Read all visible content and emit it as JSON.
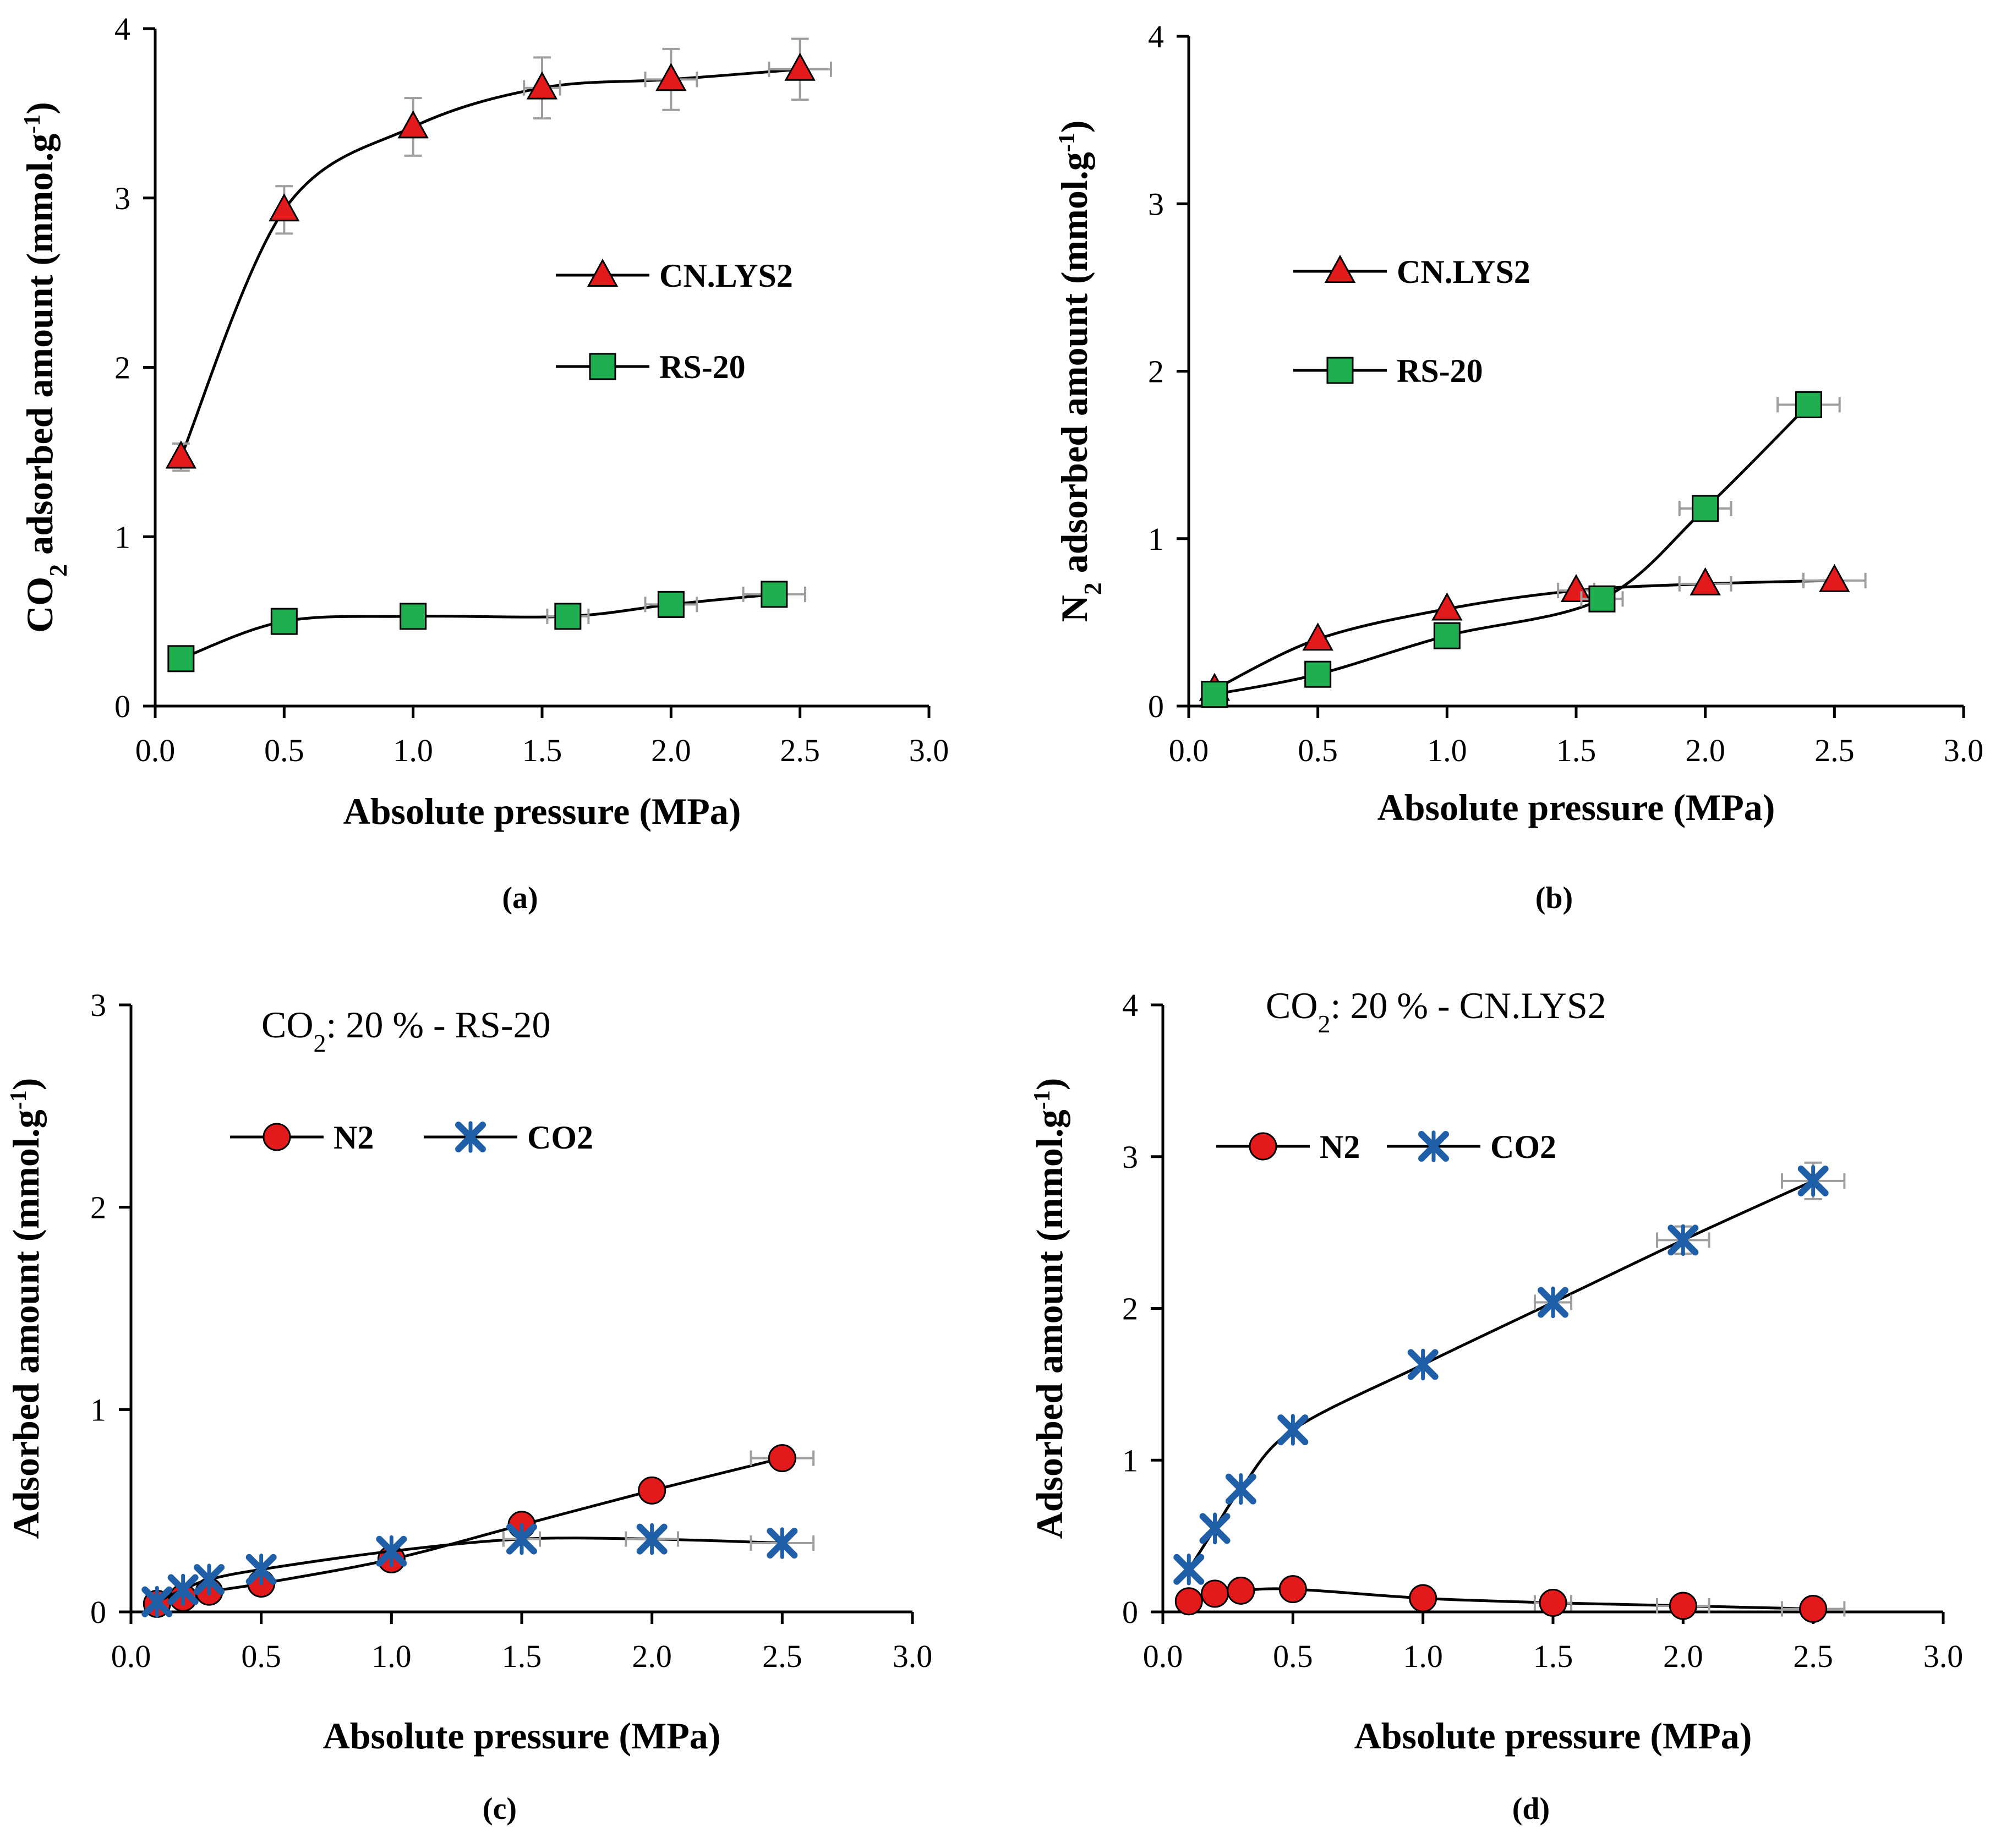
{
  "chart_data": [
    {
      "type": "scatter",
      "panel_label": "(a)",
      "xlabel": "Absolute pressure (MPa)",
      "ylabel": {
        "main": "CO",
        "sub": "2",
        "rest": " adsorbed amount (mmol.g",
        "sup": "-1",
        "end": ")"
      },
      "xlim": [
        0,
        3
      ],
      "ylim": [
        0,
        4
      ],
      "xticks": [
        "0.0",
        "0.5",
        "1.0",
        "1.5",
        "2.0",
        "2.5",
        "3.0"
      ],
      "yticks": [
        "0",
        "1",
        "2",
        "3",
        "4"
      ],
      "annotation": null,
      "legend": [
        "CN.LYS2",
        "RS-20"
      ],
      "series": [
        {
          "name": "CN.LYS2",
          "marker": "triangle",
          "color": "#e31a1c",
          "x": [
            0.1,
            0.5,
            1.0,
            1.5,
            2.0,
            2.5
          ],
          "y": [
            1.47,
            2.93,
            3.42,
            3.65,
            3.7,
            3.76
          ],
          "xerr": [
            0,
            0,
            0,
            0.07,
            0.1,
            0.12
          ],
          "yerr": [
            0.08,
            0.14,
            0.17,
            0.18,
            0.18,
            0.18
          ]
        },
        {
          "name": "RS-20",
          "marker": "square",
          "color": "#1fae50",
          "x": [
            0.1,
            0.5,
            1.0,
            1.6,
            2.0,
            2.4
          ],
          "y": [
            0.28,
            0.5,
            0.53,
            0.53,
            0.6,
            0.66
          ],
          "xerr": [
            0,
            0,
            0,
            0.08,
            0.1,
            0.12
          ],
          "yerr": [
            0,
            0,
            0,
            0,
            0,
            0
          ]
        }
      ]
    },
    {
      "type": "scatter",
      "panel_label": "(b)",
      "xlabel": "Absolute pressure (MPa)",
      "ylabel": {
        "main": "N",
        "sub": "2",
        "rest": " adsorbed amount (mmol.g",
        "sup": "-1",
        "end": ")"
      },
      "xlim": [
        0,
        3
      ],
      "ylim": [
        0,
        4
      ],
      "xticks": [
        "0.0",
        "0.5",
        "1.0",
        "1.5",
        "2.0",
        "2.5",
        "3.0"
      ],
      "yticks": [
        "0",
        "1",
        "2",
        "3",
        "4"
      ],
      "annotation": null,
      "legend": [
        "CN.LYS2",
        "RS-20"
      ],
      "series": [
        {
          "name": "CN.LYS2",
          "marker": "triangle",
          "color": "#e31a1c",
          "x": [
            0.1,
            0.5,
            1.0,
            1.5,
            2.0,
            2.5
          ],
          "y": [
            0.1,
            0.4,
            0.58,
            0.69,
            0.73,
            0.75
          ],
          "xerr": [
            0,
            0,
            0,
            0.07,
            0.1,
            0.12
          ],
          "yerr": [
            0,
            0,
            0,
            0,
            0,
            0
          ]
        },
        {
          "name": "RS-20",
          "marker": "square",
          "color": "#1fae50",
          "x": [
            0.1,
            0.5,
            1.0,
            1.6,
            2.0,
            2.4
          ],
          "y": [
            0.07,
            0.19,
            0.42,
            0.64,
            1.18,
            1.8
          ],
          "xerr": [
            0,
            0,
            0,
            0.08,
            0.1,
            0.12
          ],
          "yerr": [
            0,
            0,
            0,
            0,
            0,
            0
          ]
        }
      ]
    },
    {
      "type": "scatter",
      "panel_label": "(c)",
      "xlabel": "Absolute pressure (MPa)",
      "ylabel": {
        "main": "Adsorbed amount (mmol.g",
        "sub": "",
        "rest": "",
        "sup": "-1",
        "end": ")"
      },
      "xlim": [
        0,
        3
      ],
      "ylim": [
        0,
        3
      ],
      "xticks": [
        "0.0",
        "0.5",
        "1.0",
        "1.5",
        "2.0",
        "2.5",
        "3.0"
      ],
      "yticks": [
        "0",
        "1",
        "2",
        "3"
      ],
      "annotation": {
        "pre": "CO",
        "sub": "2",
        "post": ": 20 % - RS-20"
      },
      "legend": [
        "N2",
        "CO2"
      ],
      "series": [
        {
          "name": "N2",
          "marker": "circle",
          "color": "#e31a1c",
          "x": [
            0.1,
            0.2,
            0.3,
            0.5,
            1.0,
            1.5,
            2.0,
            2.5
          ],
          "y": [
            0.04,
            0.07,
            0.1,
            0.14,
            0.26,
            0.43,
            0.6,
            0.76
          ],
          "xerr": [
            0,
            0,
            0,
            0,
            0,
            0,
            0,
            0.12
          ],
          "yerr": [
            0,
            0,
            0,
            0,
            0,
            0,
            0,
            0
          ]
        },
        {
          "name": "CO2",
          "marker": "star",
          "color": "#1f5fa8",
          "x": [
            0.1,
            0.2,
            0.3,
            0.5,
            1.0,
            1.5,
            2.0,
            2.5
          ],
          "y": [
            0.05,
            0.11,
            0.16,
            0.21,
            0.3,
            0.36,
            0.36,
            0.34
          ],
          "xerr": [
            0,
            0,
            0,
            0,
            0,
            0.07,
            0.1,
            0.12
          ],
          "yerr": [
            0,
            0,
            0,
            0,
            0,
            0,
            0,
            0
          ]
        }
      ]
    },
    {
      "type": "scatter",
      "panel_label": "(d)",
      "xlabel": "Absolute pressure (MPa)",
      "ylabel": {
        "main": "Adsorbed amount (mmol.g",
        "sub": "",
        "rest": "",
        "sup": "-1",
        "end": ")"
      },
      "xlim": [
        0,
        3
      ],
      "ylim": [
        0,
        4
      ],
      "xticks": [
        "0.0",
        "0.5",
        "1.0",
        "1.5",
        "2.0",
        "2.5",
        "3.0"
      ],
      "yticks": [
        "0",
        "1",
        "2",
        "3",
        "4"
      ],
      "annotation": {
        "pre": "CO",
        "sub": "2",
        "post": ": 20 % - CN.LYS2"
      },
      "legend": [
        "N2",
        "CO2"
      ],
      "series": [
        {
          "name": "N2",
          "marker": "circle",
          "color": "#e31a1c",
          "x": [
            0.1,
            0.2,
            0.3,
            0.5,
            1.0,
            1.5,
            2.0,
            2.5
          ],
          "y": [
            0.07,
            0.12,
            0.14,
            0.15,
            0.09,
            0.06,
            0.04,
            0.02
          ],
          "xerr": [
            0,
            0,
            0,
            0,
            0,
            0.07,
            0.1,
            0.12
          ],
          "yerr": [
            0,
            0,
            0,
            0,
            0,
            0,
            0,
            0
          ]
        },
        {
          "name": "CO2",
          "marker": "star",
          "color": "#1f5fa8",
          "x": [
            0.1,
            0.2,
            0.3,
            0.5,
            1.0,
            1.5,
            2.0,
            2.5
          ],
          "y": [
            0.28,
            0.55,
            0.81,
            1.2,
            1.63,
            2.04,
            2.45,
            2.84
          ],
          "xerr": [
            0,
            0,
            0,
            0,
            0,
            0.07,
            0.1,
            0.12
          ],
          "yerr": [
            0,
            0,
            0,
            0,
            0,
            0,
            0.09,
            0.12
          ]
        }
      ]
    }
  ]
}
